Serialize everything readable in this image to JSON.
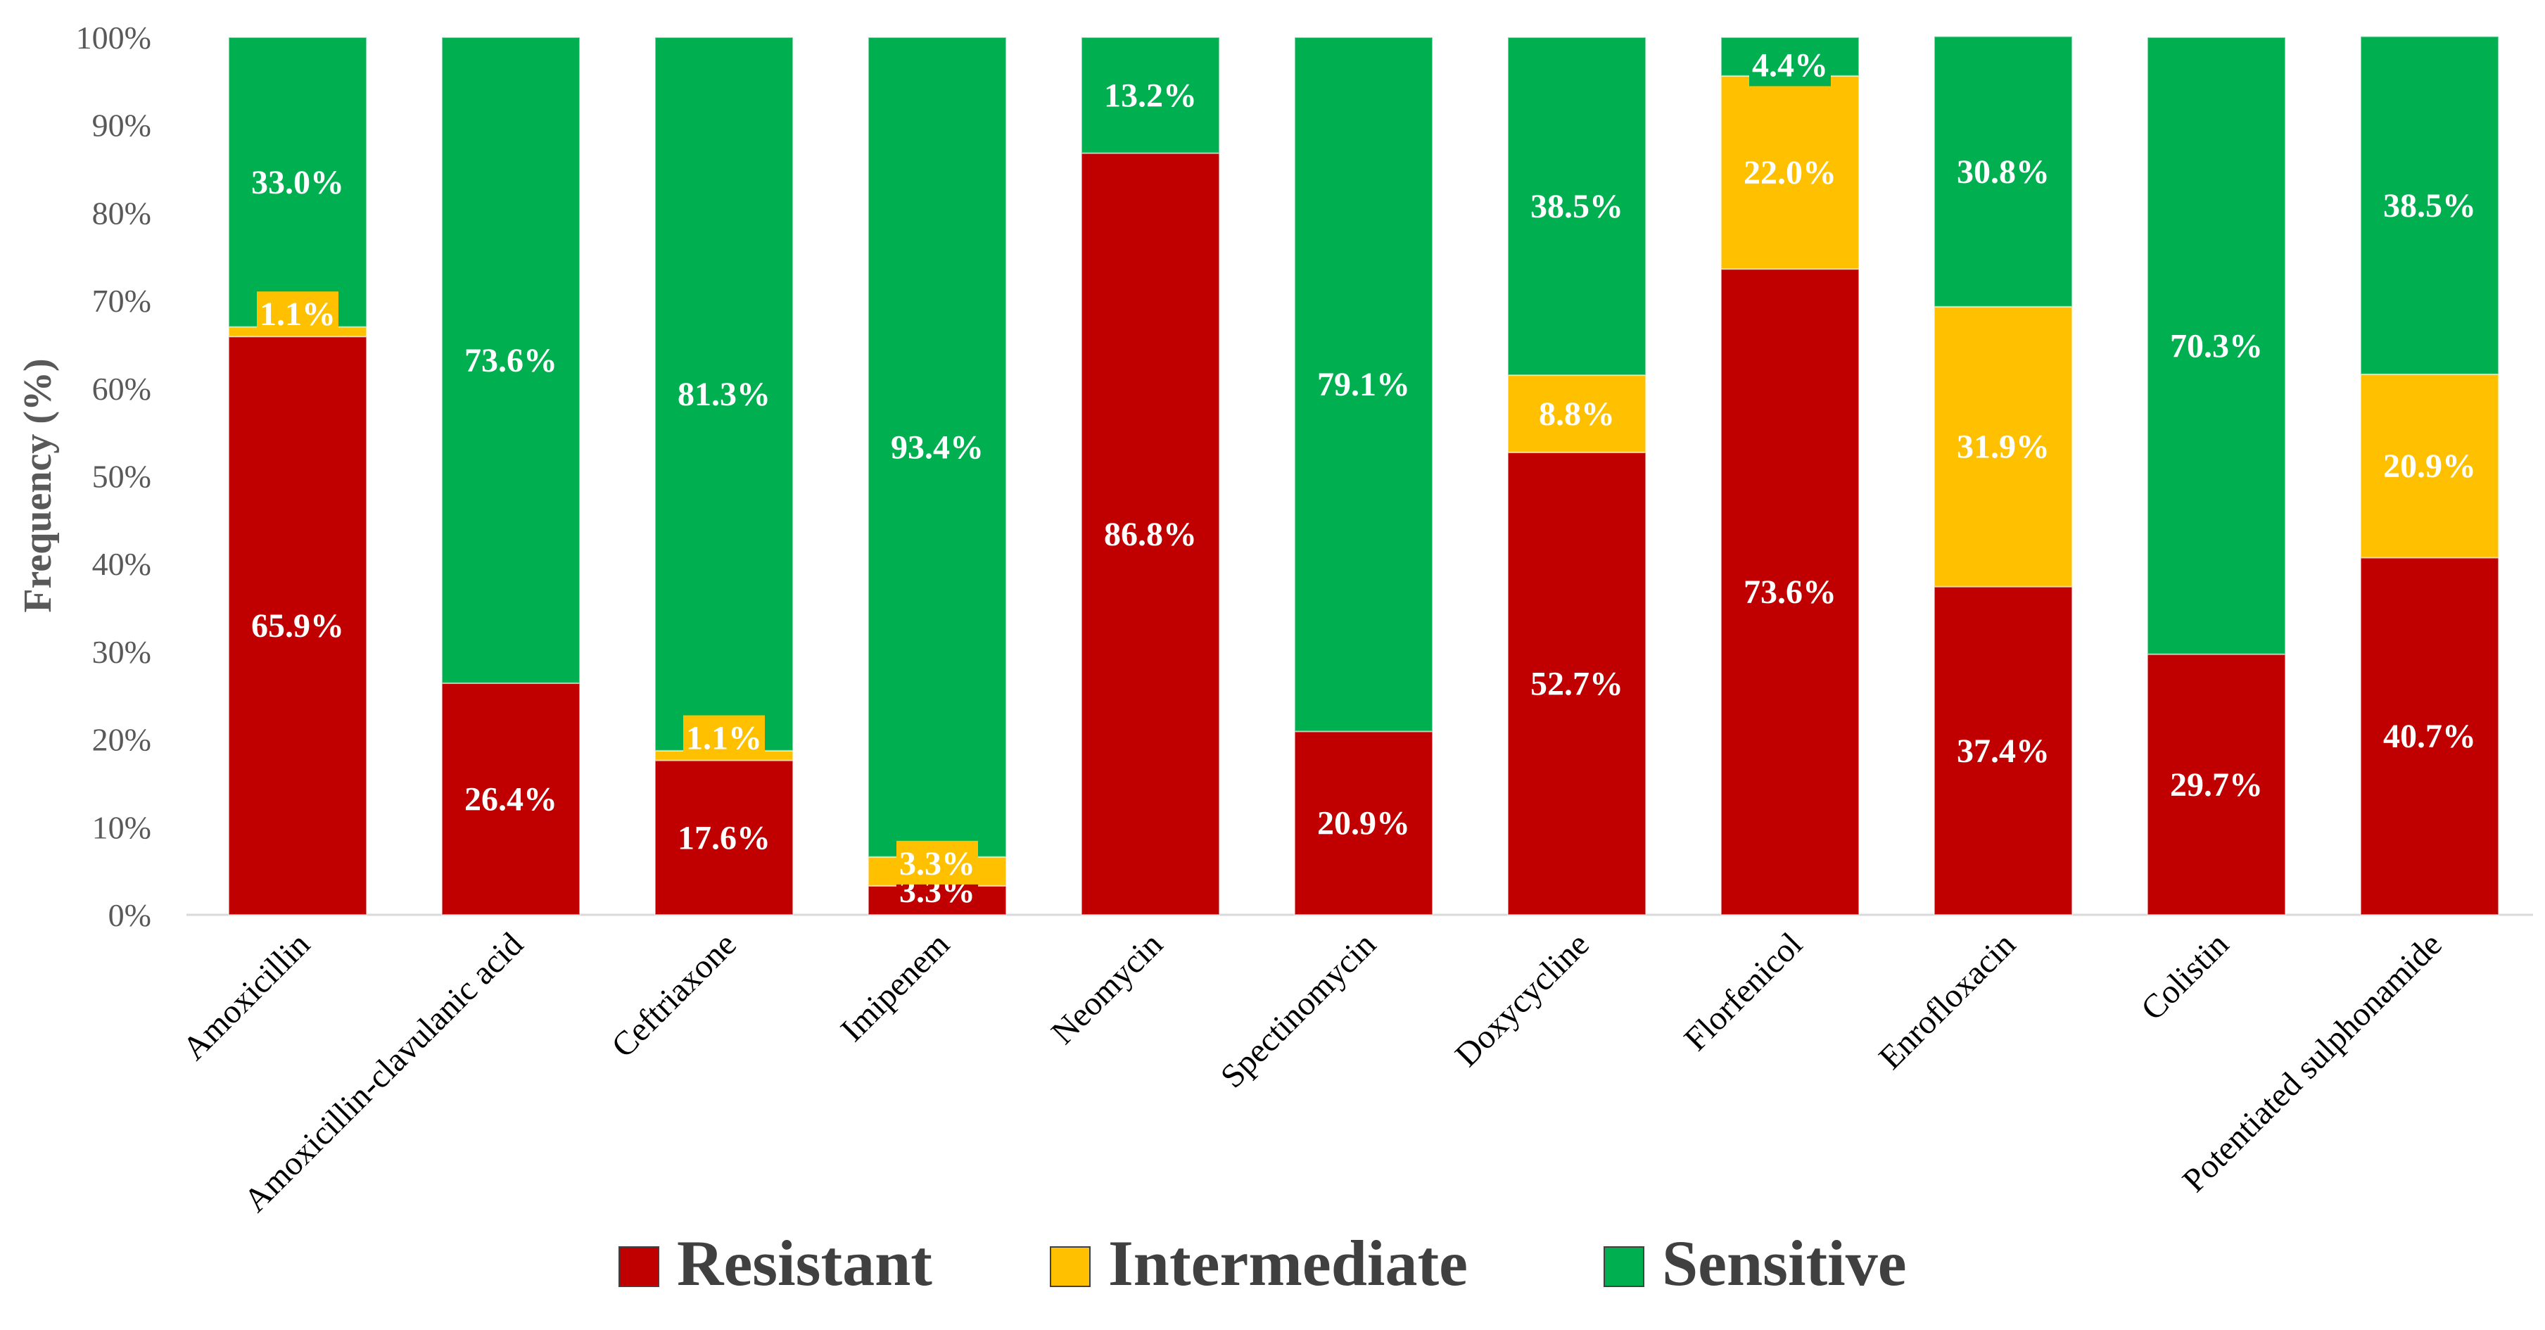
{
  "chart_data": {
    "type": "bar",
    "stacked": true,
    "percent": true,
    "title": "",
    "xlabel": "",
    "ylabel": "Frequency (%)",
    "ylim": [
      0,
      100
    ],
    "yticks": [
      "0%",
      "10%",
      "20%",
      "30%",
      "40%",
      "50%",
      "60%",
      "70%",
      "80%",
      "90%",
      "100%"
    ],
    "categories": [
      "Amoxicillin",
      "Amoxicillin-clavulanic acid",
      "Ceftriaxone",
      "Imipenem",
      "Neomycin",
      "Spectinomycin",
      "Doxycycline",
      "Florfenicol",
      "Enrofloxacin",
      "Colistin",
      "Potentiated sulphonamide"
    ],
    "series": [
      {
        "name": "Resistant",
        "color": "#c00000",
        "values": [
          65.9,
          26.4,
          17.6,
          3.3,
          86.8,
          20.9,
          52.7,
          73.6,
          37.4,
          29.7,
          40.7
        ],
        "labels": [
          "65.9%",
          "26.4%",
          "17.6%",
          "3.3%",
          "86.8%",
          "20.9%",
          "52.7%",
          "73.6%",
          "37.4%",
          "29.7%",
          "40.7%"
        ]
      },
      {
        "name": "Intermediate",
        "color": "#ffc000",
        "values": [
          1.1,
          0,
          1.1,
          3.3,
          0,
          0,
          8.8,
          22.0,
          31.9,
          0,
          20.9
        ],
        "labels": [
          "1.1%",
          "",
          "1.1%",
          "3.3%",
          "",
          "",
          "8.8%",
          "22.0%",
          "31.9%",
          "",
          "20.9%"
        ]
      },
      {
        "name": "Sensitive",
        "color": "#00b050",
        "values": [
          33.0,
          73.6,
          81.3,
          93.4,
          13.2,
          79.1,
          38.5,
          4.4,
          30.8,
          70.3,
          38.5
        ],
        "labels": [
          "33.0%",
          "73.6%",
          "81.3%",
          "93.4%",
          "13.2%",
          "79.1%",
          "38.5%",
          "4.4%",
          "30.8%",
          "70.3%",
          "38.5%"
        ]
      }
    ],
    "legend": {
      "position": "bottom",
      "labels": [
        "Resistant",
        "Intermediate",
        "Sensitive"
      ]
    }
  }
}
